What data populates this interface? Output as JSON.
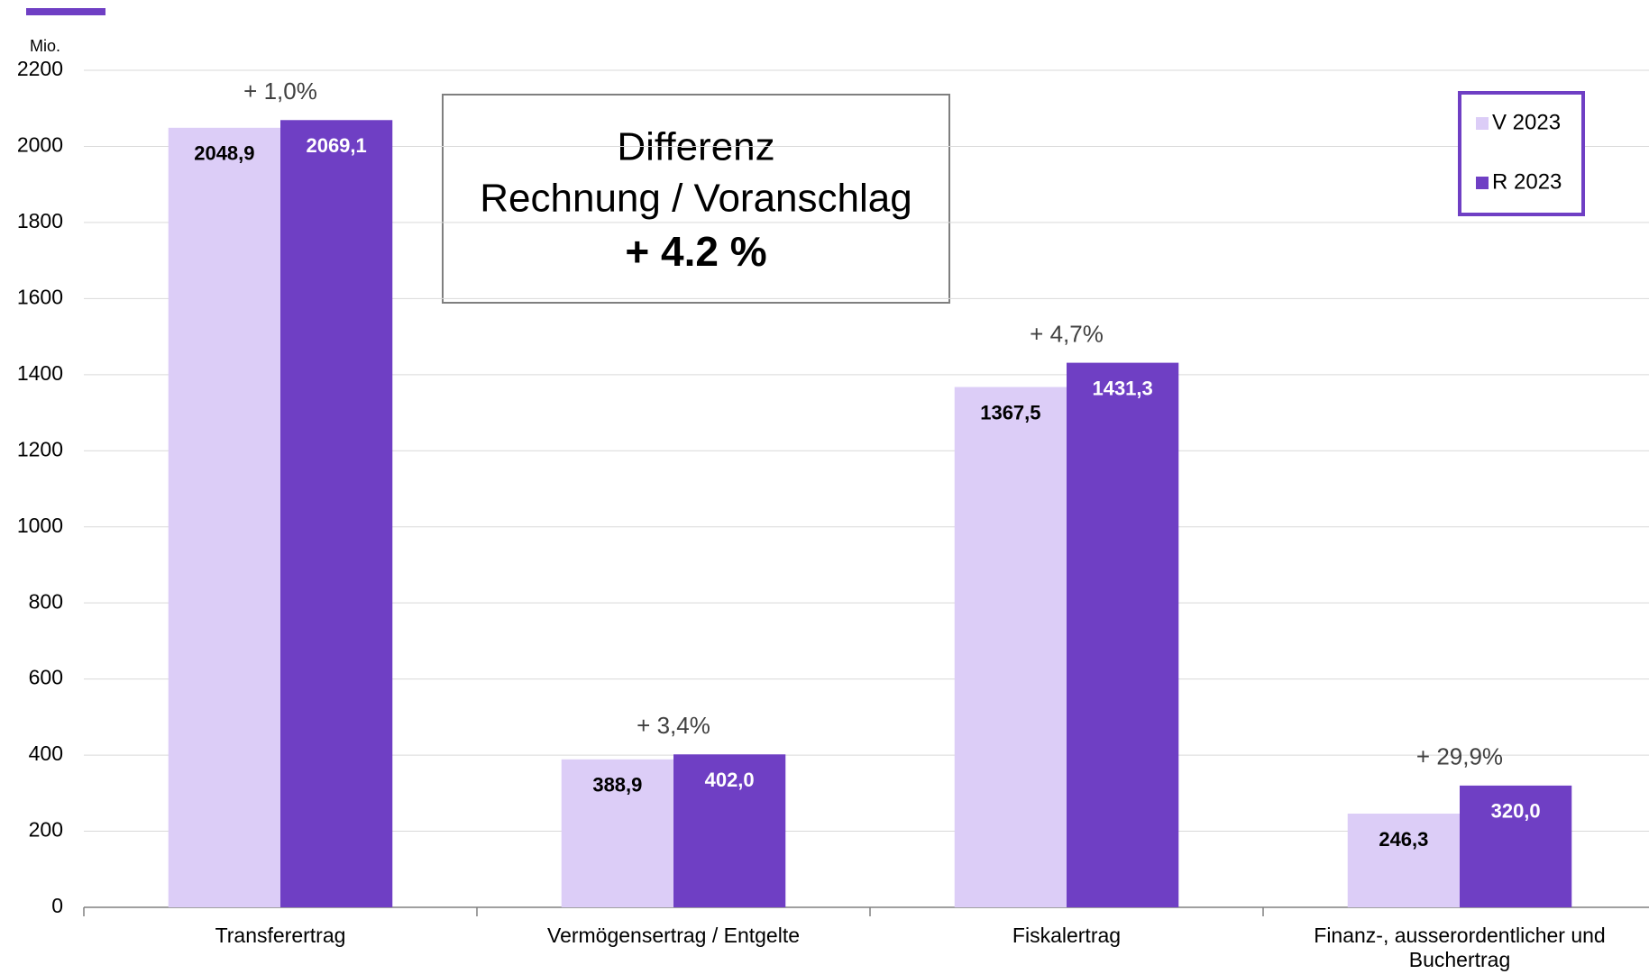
{
  "chart_data": {
    "type": "bar",
    "y_label": "Mio.",
    "categories": [
      "Transferertrag",
      "Vermögensertrag / Entgelte",
      "Fiskalertrag",
      "Finanz-, ausserordentlicher und Buchertrag"
    ],
    "series": [
      {
        "name": "V 2023",
        "color": "#dccdf7",
        "label_color": "#000000",
        "values": [
          2048.9,
          388.9,
          1367.5,
          246.3
        ],
        "value_labels": [
          "2048,9",
          "388,9",
          "1367,5",
          "246,3"
        ]
      },
      {
        "name": "R 2023",
        "color": "#6f3fc4",
        "label_color": "#ffffff",
        "values": [
          2069.1,
          402.0,
          1431.3,
          320.0
        ],
        "value_labels": [
          "2069,1",
          "402,0",
          "1431,3",
          "320,0"
        ]
      }
    ],
    "annotations": [
      "+ 1,0%",
      "+ 3,4%",
      "+ 4,7%",
      "+ 29,9%"
    ],
    "box_text": [
      "Differenz",
      "Rechnung / Voranschlag",
      "+ 4.2 %"
    ],
    "ylim": [
      0,
      2200
    ],
    "yticks": [
      0,
      200,
      400,
      600,
      800,
      1000,
      1200,
      1400,
      1600,
      1800,
      2000,
      2200
    ],
    "grid": true,
    "legend": "upper right"
  }
}
